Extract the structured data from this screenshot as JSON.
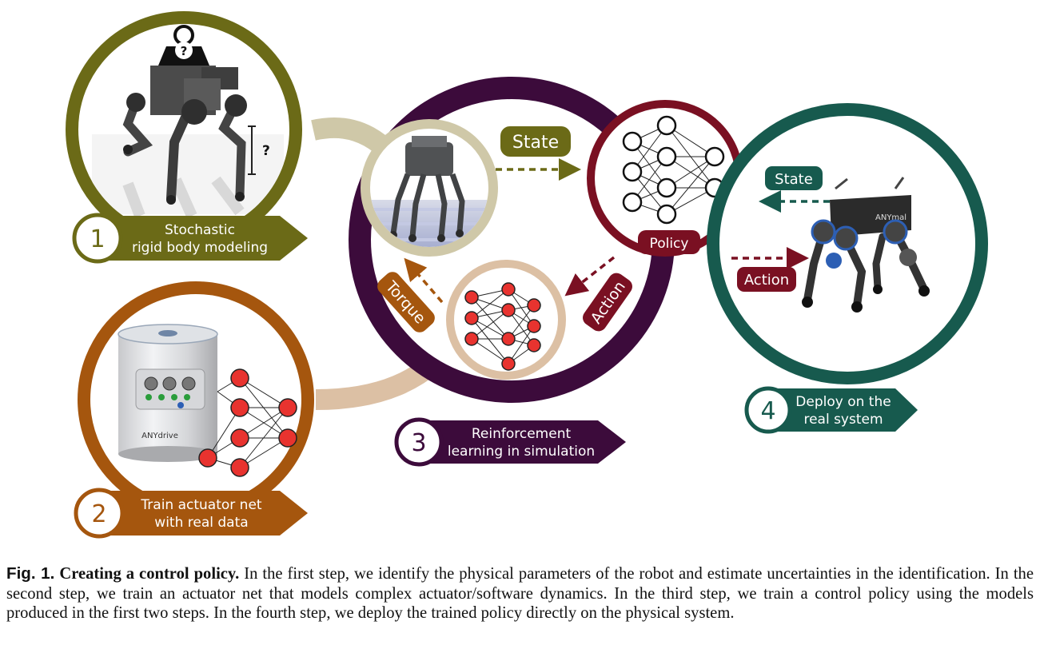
{
  "colors": {
    "step1": "#6b6a17",
    "step2": "#a5560e",
    "step3": "#3c0b3b",
    "step4": "#175a4e",
    "policy": "#7a1022",
    "neuron_red": "#e8332f",
    "link_step1": "#cfc8a8",
    "link_step2": "#dcc0a4"
  },
  "steps": [
    {
      "number": "1",
      "label_line1": "Stochastic",
      "label_line2": "rigid body modeling"
    },
    {
      "number": "2",
      "label_line1": "Train actuator net",
      "label_line2": "with real data"
    },
    {
      "number": "3",
      "label_line1": "Reinforcement",
      "label_line2": "learning in simulation"
    },
    {
      "number": "4",
      "label_line1": "Deploy on the",
      "label_line2": "real system"
    }
  ],
  "labels": {
    "state_sim": "State",
    "policy": "Policy",
    "action_sim": "Action",
    "torque": "Torque",
    "state_real": "State",
    "action_real": "Action"
  },
  "annotations": {
    "mass_symbol": "?",
    "length_symbol": "?",
    "actuator_brand": "ANYdrive",
    "robot_brand": "ANYmal"
  },
  "caption": {
    "fig_label": "Fig. 1.",
    "title": "Creating a control policy.",
    "text": "In the first step, we identify the physical parameters of the robot and estimate uncertainties in the identification. In the second step, we train an actuator net that models complex actuator/software dynamics. In the third step, we train a control policy using the models produced in the first two steps. In the fourth step, we deploy the trained policy directly on the physical system."
  }
}
